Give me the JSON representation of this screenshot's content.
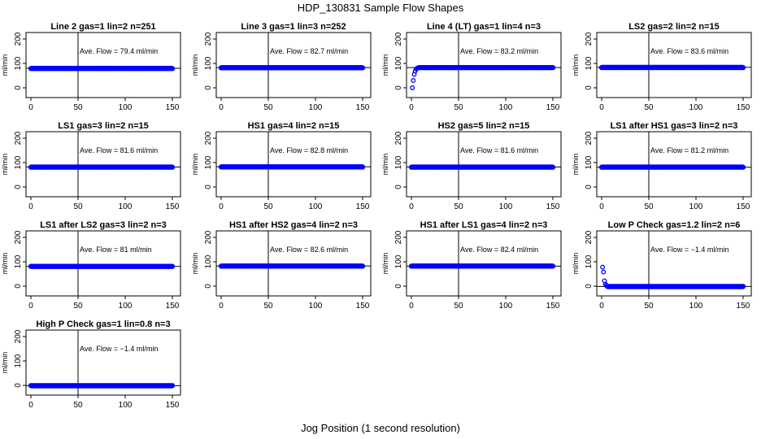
{
  "figure": {
    "title": "HDP_130831  Sample Flow Shapes",
    "xlabel": "Jog Position (1 second resolution)"
  },
  "chart_data": [
    {
      "type": "scatter",
      "title": "Line 2 gas=1 lin=2 n=251",
      "annotation": "Ave. Flow =  79.4  ml/min",
      "ylabel": "ml/min",
      "xlim": [
        0,
        150
      ],
      "ylim": [
        0,
        200
      ],
      "xticks": [
        0,
        50,
        100,
        150
      ],
      "yticks": [
        0,
        100,
        200
      ],
      "vline": 50,
      "hline": 80,
      "series_color": "#0000ff",
      "flow": {
        "start": 0,
        "end": 150,
        "values": [
          79,
          80
        ]
      }
    },
    {
      "type": "scatter",
      "title": "Line 3 gas=1 lin=3 n=252",
      "annotation": "Ave. Flow =  82.7  ml/min",
      "ylabel": "ml/min",
      "xlim": [
        0,
        150
      ],
      "ylim": [
        0,
        200
      ],
      "xticks": [
        0,
        50,
        100,
        150
      ],
      "yticks": [
        0,
        100,
        200
      ],
      "vline": 50,
      "hline": 83,
      "series_color": "#0000ff",
      "flow": {
        "start": 0,
        "end": 150,
        "values": [
          82,
          83
        ]
      }
    },
    {
      "type": "scatter",
      "title": "Line 4 (LT) gas=1 lin=4 n=3",
      "annotation": "Ave. Flow =  83.2  ml/min",
      "ylabel": "ml/min",
      "xlim": [
        0,
        150
      ],
      "ylim": [
        0,
        200
      ],
      "xticks": [
        0,
        50,
        100,
        150
      ],
      "yticks": [
        0,
        100,
        200
      ],
      "vline": 50,
      "hline": 83,
      "series_color": "#0000ff",
      "flow": {
        "start": 0,
        "end": 150,
        "values": [
          83
        ],
        "ramp": [
          [
            1,
            0
          ],
          [
            2,
            30
          ],
          [
            3,
            55
          ],
          [
            4,
            68
          ],
          [
            5,
            76
          ],
          [
            6,
            80
          ],
          [
            7,
            82
          ]
        ]
      }
    },
    {
      "type": "scatter",
      "title": "LS2 gas=2 lin=2 n=15",
      "annotation": "Ave. Flow =  83.6  ml/min",
      "ylabel": "ml/min",
      "xlim": [
        0,
        150
      ],
      "ylim": [
        0,
        200
      ],
      "xticks": [
        0,
        50,
        100,
        150
      ],
      "yticks": [
        0,
        100,
        200
      ],
      "vline": 50,
      "hline": 84,
      "series_color": "#0000ff",
      "flow": {
        "start": 0,
        "end": 150,
        "values": [
          83,
          84
        ]
      }
    },
    {
      "type": "scatter",
      "title": "LS1 gas=3 lin=2 n=15",
      "annotation": "Ave. Flow =  81.6  ml/min",
      "ylabel": "ml/min",
      "xlim": [
        0,
        150
      ],
      "ylim": [
        0,
        200
      ],
      "xticks": [
        0,
        50,
        100,
        150
      ],
      "yticks": [
        0,
        100,
        200
      ],
      "vline": 50,
      "hline": 82,
      "series_color": "#0000ff",
      "flow": {
        "start": 0,
        "end": 150,
        "values": [
          81,
          82
        ]
      }
    },
    {
      "type": "scatter",
      "title": "HS1 gas=4 lin=2 n=15",
      "annotation": "Ave. Flow =  82.8  ml/min",
      "ylabel": "ml/min",
      "xlim": [
        0,
        150
      ],
      "ylim": [
        0,
        200
      ],
      "xticks": [
        0,
        50,
        100,
        150
      ],
      "yticks": [
        0,
        100,
        200
      ],
      "vline": 50,
      "hline": 83,
      "series_color": "#0000ff",
      "flow": {
        "start": 0,
        "end": 150,
        "values": [
          82,
          83
        ]
      }
    },
    {
      "type": "scatter",
      "title": "HS2 gas=5 lin=2 n=15",
      "annotation": "Ave. Flow =  81.6  ml/min",
      "ylabel": "ml/min",
      "xlim": [
        0,
        150
      ],
      "ylim": [
        0,
        200
      ],
      "xticks": [
        0,
        50,
        100,
        150
      ],
      "yticks": [
        0,
        100,
        200
      ],
      "vline": 50,
      "hline": 82,
      "series_color": "#0000ff",
      "flow": {
        "start": 0,
        "end": 150,
        "values": [
          81,
          82
        ]
      }
    },
    {
      "type": "scatter",
      "title": "LS1 after HS1 gas=3 lin=2 n=3",
      "annotation": "Ave. Flow =  81.2  ml/min",
      "ylabel": "ml/min",
      "xlim": [
        0,
        150
      ],
      "ylim": [
        0,
        200
      ],
      "xticks": [
        0,
        50,
        100,
        150
      ],
      "yticks": [
        0,
        100,
        200
      ],
      "vline": 50,
      "hline": 81,
      "series_color": "#0000ff",
      "flow": {
        "start": 0,
        "end": 150,
        "values": [
          81,
          82
        ]
      }
    },
    {
      "type": "scatter",
      "title": "LS1 after LS2 gas=3 lin=2 n=3",
      "annotation": "Ave. Flow =  81  ml/min",
      "ylabel": "ml/min",
      "xlim": [
        0,
        150
      ],
      "ylim": [
        0,
        200
      ],
      "xticks": [
        0,
        50,
        100,
        150
      ],
      "yticks": [
        0,
        100,
        200
      ],
      "vline": 50,
      "hline": 81,
      "series_color": "#0000ff",
      "flow": {
        "start": 0,
        "end": 150,
        "values": [
          81
        ]
      }
    },
    {
      "type": "scatter",
      "title": "HS1 after HS2 gas=4 lin=2 n=3",
      "annotation": "Ave. Flow =  82.6  ml/min",
      "ylabel": "ml/min",
      "xlim": [
        0,
        150
      ],
      "ylim": [
        0,
        200
      ],
      "xticks": [
        0,
        50,
        100,
        150
      ],
      "yticks": [
        0,
        100,
        200
      ],
      "vline": 50,
      "hline": 83,
      "series_color": "#0000ff",
      "flow": {
        "start": 0,
        "end": 150,
        "values": [
          82,
          83
        ]
      }
    },
    {
      "type": "scatter",
      "title": "HS1 after LS1 gas=4 lin=2 n=3",
      "annotation": "Ave. Flow =  82.4  ml/min",
      "ylabel": "ml/min",
      "xlim": [
        0,
        150
      ],
      "ylim": [
        0,
        200
      ],
      "xticks": [
        0,
        50,
        100,
        150
      ],
      "yticks": [
        0,
        100,
        200
      ],
      "vline": 50,
      "hline": 82,
      "series_color": "#0000ff",
      "flow": {
        "start": 0,
        "end": 150,
        "values": [
          82,
          83
        ]
      }
    },
    {
      "type": "scatter",
      "title": "Low P Check gas=1.2 lin=2 n=6",
      "annotation": "Ave. Flow =  −1.4  ml/min",
      "ylabel": "ml/min",
      "xlim": [
        0,
        150
      ],
      "ylim": [
        0,
        200
      ],
      "xticks": [
        0,
        50,
        100,
        150
      ],
      "yticks": [
        0,
        100,
        200
      ],
      "vline": 50,
      "hline": -1.4,
      "series_color": "#0000ff",
      "flow": {
        "start": 0,
        "end": 150,
        "values": [
          -1,
          -2
        ],
        "ramp": [
          [
            1,
            78
          ],
          [
            2,
            58
          ],
          [
            3,
            22
          ],
          [
            4,
            8
          ],
          [
            5,
            3
          ]
        ]
      }
    },
    {
      "type": "scatter",
      "title": "High P Check gas=1 lin=0.8 n=3",
      "annotation": "Ave. Flow =  −1.4  ml/min",
      "ylabel": "ml/min",
      "xlim": [
        0,
        150
      ],
      "ylim": [
        0,
        200
      ],
      "xticks": [
        0,
        50,
        100,
        150
      ],
      "yticks": [
        0,
        100,
        200
      ],
      "vline": 50,
      "hline": -1.4,
      "series_color": "#0000ff",
      "flow": {
        "start": 0,
        "end": 150,
        "values": [
          -1,
          -2
        ]
      }
    }
  ]
}
